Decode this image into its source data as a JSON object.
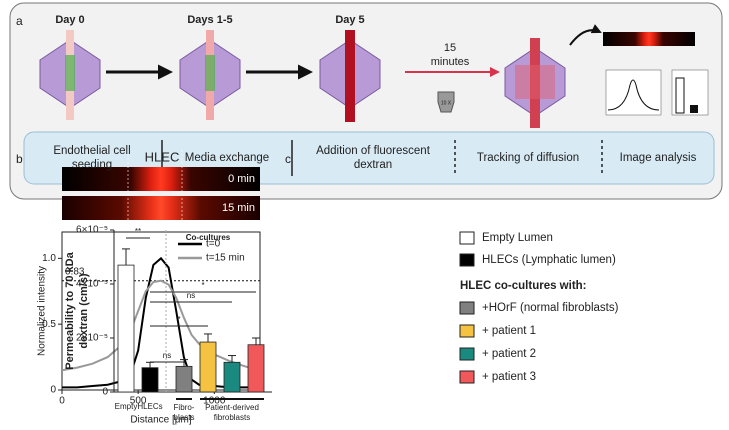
{
  "panel_labels": [
    "a",
    "b",
    "c"
  ],
  "panel_a": {
    "days": [
      "Day 0",
      "Days 1-5",
      "Day 5"
    ],
    "wait": [
      "15",
      "minutes"
    ],
    "objective": "10 X",
    "steps": [
      [
        "Endothelial cell",
        "seeding"
      ],
      [
        "Media exchange"
      ],
      [
        "Addition of fluorescent",
        "dextran"
      ],
      [
        "Tracking of diffusion"
      ],
      [
        "Image analysis"
      ]
    ]
  },
  "chart_data": [
    {
      "type": "line",
      "title": "HLEC",
      "strip_labels": [
        "0 min",
        "15 min"
      ],
      "x": [
        0,
        100,
        200,
        300,
        400,
        450,
        500,
        550,
        600,
        650,
        700,
        750,
        800,
        850,
        900,
        1000,
        1100,
        1200,
        1300
      ],
      "series": [
        {
          "name": "t=0",
          "color": "#000000",
          "values": [
            0.02,
            0.02,
            0.03,
            0.04,
            0.07,
            0.12,
            0.3,
            0.7,
            0.95,
            1.0,
            0.93,
            0.6,
            0.25,
            0.08,
            0.04,
            0.03,
            0.02,
            0.02,
            0.02
          ]
        },
        {
          "name": "t=15 min",
          "color": "#999999",
          "values": [
            0.15,
            0.17,
            0.2,
            0.25,
            0.35,
            0.45,
            0.6,
            0.75,
            0.82,
            0.83,
            0.8,
            0.7,
            0.55,
            0.42,
            0.35,
            0.27,
            0.22,
            0.18,
            0.15
          ]
        }
      ],
      "reference_line": {
        "value": 0.83,
        "label": "0.83"
      },
      "xlim": [
        0,
        1300
      ],
      "xticks": [
        0,
        500,
        1000
      ],
      "ylim": [
        0,
        1.2
      ],
      "yticks": [
        0,
        0.5,
        {
          "value": 1.0,
          "label": "1.0"
        }
      ],
      "xlabel": "Distance [μm]",
      "ylabel": "Normalized intensity",
      "legend": "upper right"
    },
    {
      "type": "bar",
      "categories": [
        "Empty",
        "HLECs",
        null,
        null,
        null,
        null
      ],
      "values": [
        4.7e-05,
        9e-06,
        9.5e-06,
        1.85e-05,
        1.1e-05,
        1.75e-05
      ],
      "errors": [
        6e-06,
        2e-06,
        2.5e-06,
        3e-06,
        2.5e-06,
        2.5e-06
      ],
      "colors": [
        "#ffffff",
        "#000000",
        "#808080",
        "#f5c242",
        "#1a8a80",
        "#f0585a"
      ],
      "legend_items": [
        "Empty Lumen",
        "HLECs (Lymphatic lumen)",
        "+HOrF (normal fibroblasts)",
        "+ patient 1",
        "+ patient 2",
        "+ patient 3"
      ],
      "legend_heading": "HLEC co-cultures with:",
      "groups": [
        [
          "Fibro-",
          "blasts"
        ],
        [
          "Patient-derived",
          "fibroblasts"
        ]
      ],
      "region_label": "Co-cultures",
      "significance": [
        "**",
        "ns",
        "*",
        "ns",
        "*"
      ],
      "ylim": [
        0,
        6e-05
      ],
      "yticks": [
        0,
        {
          "value": 2e-05,
          "label": "2×10⁻⁵"
        },
        {
          "value": 4e-05,
          "label": "4×10⁻⁵"
        },
        {
          "value": 6e-05,
          "label": "6×10⁻⁵"
        }
      ],
      "ylabel": [
        "Permeability to 70 kDa",
        "dextran (cm/s)"
      ]
    }
  ]
}
